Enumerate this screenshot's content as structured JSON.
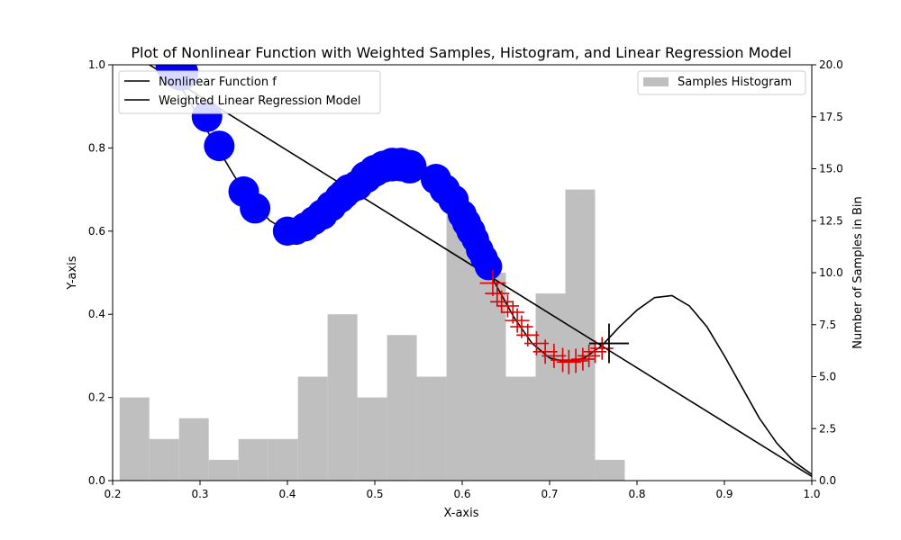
{
  "chart_data": {
    "type": "mixed",
    "title": "Plot of Nonlinear Function with Weighted Samples, Histogram, and Linear Regression Model",
    "xlabel": "X-axis",
    "ylabel": "Y-axis",
    "y2label": "Number of Samples in Bin",
    "xlim": [
      0.2,
      1.0
    ],
    "ylim": [
      0.0,
      1.0
    ],
    "y2lim": [
      0.0,
      20.0
    ],
    "x_ticks": [
      0.2,
      0.3,
      0.4,
      0.5,
      0.6,
      0.7,
      0.8,
      0.9,
      1.0
    ],
    "y_ticks": [
      0.0,
      0.2,
      0.4,
      0.6,
      0.8,
      1.0
    ],
    "y2_ticks": [
      0.0,
      2.5,
      5.0,
      7.5,
      10.0,
      12.5,
      15.0,
      17.5,
      20.0
    ],
    "legend_left": {
      "placement": "upper-left",
      "entries": [
        {
          "label": "Nonlinear Function f",
          "color": "#000000"
        },
        {
          "label": "Weighted Linear Regression Model",
          "color": "#000000"
        }
      ]
    },
    "legend_right": {
      "placement": "upper-right",
      "entries": [
        {
          "label": "Samples Histogram",
          "color": "#bfbfbf"
        }
      ]
    },
    "histogram": {
      "color": "#bfbfbf",
      "bin_edges": [
        0.208,
        0.242,
        0.276,
        0.31,
        0.344,
        0.378,
        0.412,
        0.446,
        0.48,
        0.514,
        0.548,
        0.582,
        0.616,
        0.65,
        0.684,
        0.718,
        0.752,
        0.786
      ],
      "counts": [
        4,
        2,
        3,
        1,
        2,
        2,
        5,
        8,
        4,
        7,
        5,
        13,
        10,
        5,
        9,
        14,
        1
      ]
    },
    "function_f": {
      "color": "#000000",
      "x": [
        0.2,
        0.22,
        0.24,
        0.26,
        0.28,
        0.3,
        0.32,
        0.34,
        0.36,
        0.38,
        0.4,
        0.42,
        0.44,
        0.46,
        0.48,
        0.5,
        0.52,
        0.54,
        0.56,
        0.58,
        0.6,
        0.62,
        0.64,
        0.66,
        0.68,
        0.7,
        0.72,
        0.74,
        0.76,
        0.78,
        0.8,
        0.82,
        0.84,
        0.86,
        0.88,
        0.9,
        0.92,
        0.94,
        0.96,
        0.98,
        1.0
      ],
      "y": [
        1.17,
        1.12,
        1.06,
        1.0,
        0.94,
        0.87,
        0.8,
        0.73,
        0.67,
        0.625,
        0.6,
        0.6,
        0.62,
        0.65,
        0.69,
        0.73,
        0.755,
        0.755,
        0.735,
        0.69,
        0.625,
        0.545,
        0.465,
        0.39,
        0.33,
        0.295,
        0.285,
        0.295,
        0.325,
        0.37,
        0.41,
        0.44,
        0.445,
        0.42,
        0.37,
        0.3,
        0.225,
        0.15,
        0.09,
        0.045,
        0.015
      ]
    },
    "regression_line": {
      "color": "#000000",
      "x": [
        0.2,
        1.0
      ],
      "y": [
        1.055,
        0.01
      ]
    },
    "weighted_samples_high": {
      "color": "#0000ff",
      "marker": "circle",
      "x": [
        0.27,
        0.278,
        0.308,
        0.322,
        0.35,
        0.363,
        0.4,
        0.41,
        0.42,
        0.43,
        0.44,
        0.45,
        0.46,
        0.465,
        0.47,
        0.48,
        0.49,
        0.5,
        0.51,
        0.52,
        0.53,
        0.54,
        0.57,
        0.58,
        0.59,
        0.6,
        0.605,
        0.61,
        0.615,
        0.62,
        0.625,
        0.63
      ],
      "y": [
        1.0,
        0.98,
        0.875,
        0.805,
        0.695,
        0.655,
        0.6,
        0.6,
        0.61,
        0.625,
        0.64,
        0.66,
        0.68,
        0.69,
        0.7,
        0.71,
        0.73,
        0.745,
        0.755,
        0.76,
        0.76,
        0.755,
        0.725,
        0.7,
        0.675,
        0.64,
        0.62,
        0.6,
        0.58,
        0.555,
        0.535,
        0.515
      ],
      "size": [
        1.2,
        1.15,
        1.0,
        1.0,
        1.0,
        1.0,
        0.95,
        0.9,
        0.95,
        0.95,
        1.0,
        1.0,
        1.0,
        1.0,
        1.0,
        1.0,
        1.05,
        1.05,
        1.05,
        1.1,
        1.1,
        1.1,
        1.0,
        1.0,
        1.0,
        0.95,
        0.95,
        0.95,
        0.9,
        0.9,
        0.9,
        0.9
      ]
    },
    "weighted_samples_low": {
      "color": "#e00000",
      "marker": "plus",
      "x": [
        0.635,
        0.64,
        0.645,
        0.652,
        0.658,
        0.663,
        0.668,
        0.675,
        0.685,
        0.695,
        0.705,
        0.715,
        0.722,
        0.73,
        0.738,
        0.745,
        0.752,
        0.76
      ],
      "y": [
        0.475,
        0.45,
        0.43,
        0.42,
        0.405,
        0.385,
        0.37,
        0.35,
        0.33,
        0.31,
        0.3,
        0.29,
        0.285,
        0.288,
        0.292,
        0.3,
        0.31,
        0.318
      ],
      "size": [
        0.8,
        0.75,
        0.7,
        0.7,
        0.7,
        0.75,
        0.7,
        0.7,
        0.75,
        0.75,
        0.75,
        0.75,
        0.75,
        0.75,
        0.7,
        0.7,
        0.7,
        0.7
      ]
    },
    "highlight_sample": {
      "color": "#000000",
      "marker": "plus",
      "x": 0.768,
      "y": 0.33
    }
  }
}
